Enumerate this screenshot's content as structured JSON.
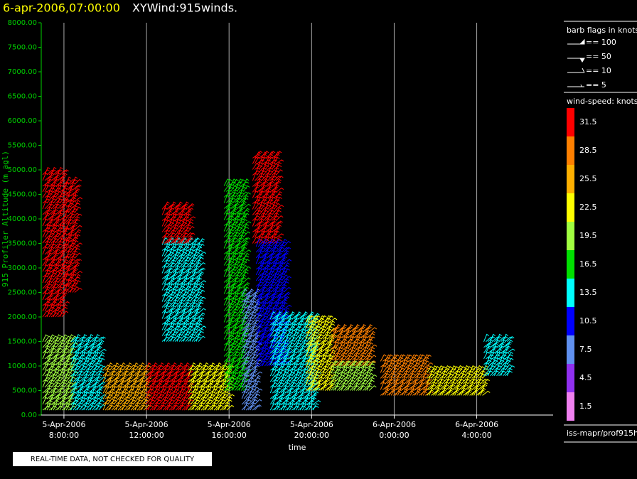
{
  "chart_data": {
    "type": "wind-barb",
    "title": "6-apr-2006,07:00:00",
    "subtitle": "XYWind:915winds.",
    "y_label": "915 Profiler Altitude (m agl)",
    "x_label": "time",
    "footer": "REAL-TIME DATA, NOT CHECKED FOR QUALITY",
    "source": "iss-mapr/prof915h",
    "xlim": [
      6.9,
      31.7
    ],
    "xticks": [
      {
        "value": 8,
        "label": "5-Apr-2006 8:00:00"
      },
      {
        "value": 12,
        "label": "5-Apr-2006 12:00:00"
      },
      {
        "value": 16,
        "label": "5-Apr-2006 16:00:00"
      },
      {
        "value": 20,
        "label": "5-Apr-2006 20:00:00"
      },
      {
        "value": 24,
        "label": "6-Apr-2006 0:00:00"
      },
      {
        "value": 28,
        "label": "6-Apr-2006 4:00:00"
      }
    ],
    "ylim": [
      0,
      8000
    ],
    "yticks": [
      {
        "value": 0,
        "label": "0.00"
      },
      {
        "value": 500,
        "label": "500.00"
      },
      {
        "value": 1000,
        "label": "1000.00"
      },
      {
        "value": 1500,
        "label": "1500.00"
      },
      {
        "value": 2000,
        "label": "2000.00"
      },
      {
        "value": 2500,
        "label": "2500.00"
      },
      {
        "value": 3000,
        "label": "3000.00"
      },
      {
        "value": 3500,
        "label": "3500.00"
      },
      {
        "value": 4000,
        "label": "4000.00"
      },
      {
        "value": 4500,
        "label": "4500.00"
      },
      {
        "value": 5000,
        "label": "5000.00"
      },
      {
        "value": 5500,
        "label": "5500.00"
      },
      {
        "value": 6000,
        "label": "6000.00"
      },
      {
        "value": 6500,
        "label": "6500.00"
      },
      {
        "value": 7000,
        "label": "7000.00"
      },
      {
        "value": 7500,
        "label": "7500.00"
      },
      {
        "value": 8000,
        "label": "8000.00"
      }
    ],
    "grid": true,
    "barb_legend": {
      "title": "barb flags in knots",
      "entries": [
        "== 100",
        "== 50",
        "== 10",
        "== 5"
      ]
    },
    "speed_legend": {
      "title": "wind-speed: knots",
      "values": [
        31.5,
        28.5,
        25.5,
        22.5,
        19.5,
        16.5,
        13.5,
        10.5,
        7.5,
        4.5,
        1.5
      ],
      "colors": [
        "#ff0000",
        "#ff8000",
        "#ffb000",
        "#ffff00",
        "#a0ff40",
        "#00e000",
        "#00ffff",
        "#0000ff",
        "#6090f0",
        "#9030f0",
        "#f080f0"
      ]
    },
    "segments": [
      {
        "x": [
          6.97,
          8
        ],
        "y": [
          2000,
          5000
        ],
        "speed": 31.5
      },
      {
        "x": [
          6.97,
          8.34
        ],
        "y": [
          100,
          1500
        ],
        "speed": 19.5
      },
      {
        "x": [
          8,
          8.52
        ],
        "y": [
          2500,
          4800
        ],
        "speed": 31.5
      },
      {
        "x": [
          8.34,
          9.72
        ],
        "y": [
          100,
          1500
        ],
        "speed": 13.5
      },
      {
        "x": [
          9.9,
          11.97
        ],
        "y": [
          100,
          1000
        ],
        "speed": 25.5
      },
      {
        "x": [
          11.97,
          14.03
        ],
        "y": [
          100,
          1000
        ],
        "speed": 31.5
      },
      {
        "x": [
          12.76,
          14.55
        ],
        "y": [
          1500,
          3500
        ],
        "speed": 13.5
      },
      {
        "x": [
          12.76,
          14.03
        ],
        "y": [
          3500,
          4200
        ],
        "speed": 31.5
      },
      {
        "x": [
          14.03,
          15.93
        ],
        "y": [
          100,
          1000
        ],
        "speed": 22.5
      },
      {
        "x": [
          15.76,
          16.79
        ],
        "y": [
          500,
          4700
        ],
        "speed": 16.5
      },
      {
        "x": [
          16.62,
          17.31
        ],
        "y": [
          100,
          2500
        ],
        "speed": 7.5
      },
      {
        "x": [
          17.14,
          18.34
        ],
        "y": [
          3500,
          5300
        ],
        "speed": 31.5
      },
      {
        "x": [
          17.31,
          18.69
        ],
        "y": [
          1000,
          3500
        ],
        "speed": 10.5
      },
      {
        "x": [
          18.0,
          20.07
        ],
        "y": [
          100,
          2000
        ],
        "speed": 13.5
      },
      {
        "x": [
          19.72,
          20.93
        ],
        "y": [
          500,
          1900
        ],
        "speed": 22.5
      },
      {
        "x": [
          20.93,
          22.83
        ],
        "y": [
          1000,
          1700
        ],
        "speed": 28.5
      },
      {
        "x": [
          20.93,
          22.83
        ],
        "y": [
          500,
          1000
        ],
        "speed": 19.5
      },
      {
        "x": [
          23.34,
          25.59
        ],
        "y": [
          400,
          1200
        ],
        "speed": 28.5
      },
      {
        "x": [
          25.59,
          28.34
        ],
        "y": [
          400,
          900
        ],
        "speed": 22.5
      },
      {
        "x": [
          28.34,
          29.55
        ],
        "y": [
          800,
          1600
        ],
        "speed": 13.5
      }
    ]
  }
}
